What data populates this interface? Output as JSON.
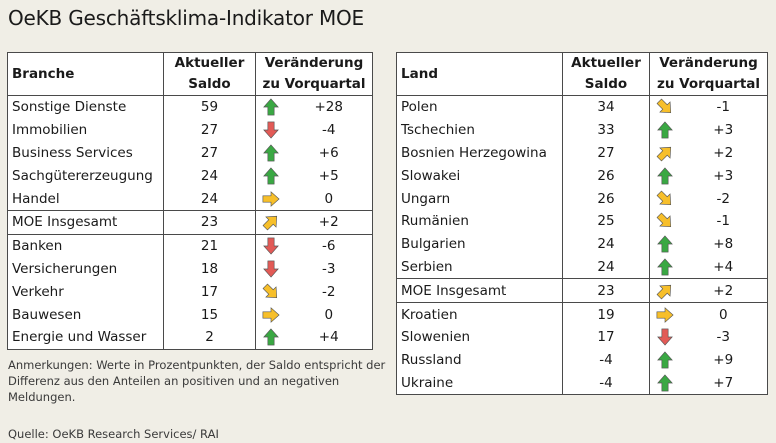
{
  "title": "OeKB Geschäftsklima-Indikator MOE",
  "colors": {
    "up": "#3aa843",
    "down": "#e25a56",
    "side": "#f7bf2a"
  },
  "left_table": {
    "header": {
      "name": "Branche",
      "saldo_1": "Aktueller",
      "saldo_2": "Saldo",
      "chg_1": "Veränderung",
      "chg_2": "zu Vorquartal"
    },
    "rows": [
      {
        "name": "Sonstige Dienste",
        "saldo": "59",
        "arrow": "up",
        "change": "+28"
      },
      {
        "name": "Immobilien",
        "saldo": "27",
        "arrow": "down",
        "change": "-4"
      },
      {
        "name": "Business Services",
        "saldo": "27",
        "arrow": "up",
        "change": "+6"
      },
      {
        "name": "Sachgütererzeugung",
        "saldo": "24",
        "arrow": "up",
        "change": "+5"
      },
      {
        "name": "Handel",
        "saldo": "24",
        "arrow": "right",
        "change": "0"
      },
      {
        "name": "MOE Insgesamt",
        "saldo": "23",
        "arrow": "up-right",
        "change": "+2"
      },
      {
        "name": "Banken",
        "saldo": "21",
        "arrow": "down",
        "change": "-6"
      },
      {
        "name": "Versicherungen",
        "saldo": "18",
        "arrow": "down",
        "change": "-3"
      },
      {
        "name": "Verkehr",
        "saldo": "17",
        "arrow": "down-right",
        "change": "-2"
      },
      {
        "name": "Bauwesen",
        "saldo": "15",
        "arrow": "right",
        "change": "0"
      },
      {
        "name": "Energie und Wasser",
        "saldo": "2",
        "arrow": "up",
        "change": "+4"
      }
    ]
  },
  "right_table": {
    "header": {
      "name": "Land",
      "saldo_1": "Aktueller",
      "saldo_2": "Saldo",
      "chg_1": "Veränderung",
      "chg_2": "zu Vorquartal"
    },
    "rows": [
      {
        "name": "Polen",
        "saldo": "34",
        "arrow": "down-right",
        "change": "-1"
      },
      {
        "name": "Tschechien",
        "saldo": "33",
        "arrow": "up",
        "change": "+3"
      },
      {
        "name": "Bosnien Herzegowina",
        "saldo": "27",
        "arrow": "up-right",
        "change": "+2"
      },
      {
        "name": "Slowakei",
        "saldo": "26",
        "arrow": "up",
        "change": "+3"
      },
      {
        "name": "Ungarn",
        "saldo": "26",
        "arrow": "down-right",
        "change": "-2"
      },
      {
        "name": "Rumänien",
        "saldo": "25",
        "arrow": "down-right",
        "change": "-1"
      },
      {
        "name": "Bulgarien",
        "saldo": "24",
        "arrow": "up",
        "change": "+8"
      },
      {
        "name": "Serbien",
        "saldo": "24",
        "arrow": "up",
        "change": "+4"
      },
      {
        "name": "MOE Insgesamt",
        "saldo": "23",
        "arrow": "up-right",
        "change": "+2"
      },
      {
        "name": "Kroatien",
        "saldo": "19",
        "arrow": "right",
        "change": "0"
      },
      {
        "name": "Slowenien",
        "saldo": "17",
        "arrow": "down",
        "change": "-3"
      },
      {
        "name": "Russland",
        "saldo": "-4",
        "arrow": "up",
        "change": "+9"
      },
      {
        "name": "Ukraine",
        "saldo": "-4",
        "arrow": "up",
        "change": "+7"
      }
    ]
  },
  "note": "Anmerkungen: Werte in Prozentpunkten, der Saldo entspricht der Differenz aus den Anteilen an positiven und an negativen Meldungen.",
  "source": "Quelle: OeKB Research Services/ RAI"
}
